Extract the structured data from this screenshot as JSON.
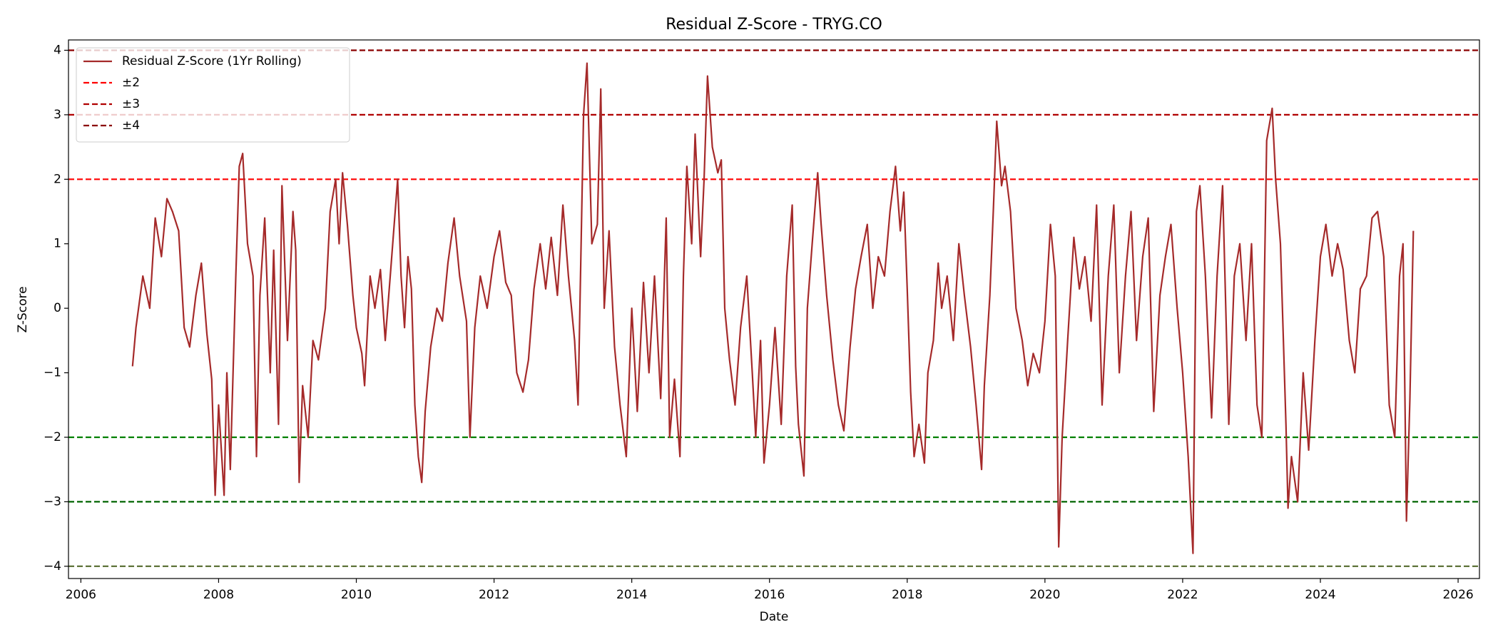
{
  "chart_data": {
    "type": "line",
    "title": "Residual Z-Score - TRYG.CO",
    "xlabel": "Date",
    "ylabel": "Z-Score",
    "legend": "upper left",
    "xlim": [
      2005.82,
      2026.31
    ],
    "ylim": [
      -4.19,
      4.16
    ],
    "xticks": [
      2006,
      2008,
      2010,
      2012,
      2014,
      2016,
      2018,
      2020,
      2022,
      2024,
      2026
    ],
    "yticks": [
      {
        "value": -4,
        "label": "−4"
      },
      {
        "value": -3,
        "label": "−3"
      },
      {
        "value": -2,
        "label": "−2"
      },
      {
        "value": -1,
        "label": "−1"
      },
      0,
      1,
      2,
      3,
      4
    ],
    "reference_lines": [
      {
        "name": "±2",
        "upper": 2,
        "lower": -2,
        "color": "#ff0000",
        "lower_color": "#008000"
      },
      {
        "name": "±3",
        "upper": 3,
        "lower": -3,
        "color": "#b00000",
        "lower_color": "#006400"
      },
      {
        "name": "±4",
        "upper": 4,
        "lower": -4,
        "color": "#8b0000",
        "lower_color": "#556b2f"
      }
    ],
    "x": [
      2006.75,
      2006.8,
      2006.9,
      2007.0,
      2007.08,
      2007.17,
      2007.25,
      2007.33,
      2007.42,
      2007.5,
      2007.58,
      2007.67,
      2007.75,
      2007.83,
      2007.9,
      2007.95,
      2008.0,
      2008.08,
      2008.12,
      2008.17,
      2008.25,
      2008.3,
      2008.35,
      2008.42,
      2008.5,
      2008.55,
      2008.6,
      2008.67,
      2008.75,
      2008.8,
      2008.87,
      2008.92,
      2009.0,
      2009.08,
      2009.12,
      2009.17,
      2009.22,
      2009.3,
      2009.37,
      2009.45,
      2009.55,
      2009.62,
      2009.7,
      2009.75,
      2009.8,
      2009.87,
      2009.95,
      2010.0,
      2010.08,
      2010.12,
      2010.2,
      2010.27,
      2010.35,
      2010.42,
      2010.5,
      2010.6,
      2010.65,
      2010.7,
      2010.75,
      2010.8,
      2010.85,
      2010.9,
      2010.95,
      2011.0,
      2011.08,
      2011.17,
      2011.25,
      2011.33,
      2011.42,
      2011.5,
      2011.6,
      2011.65,
      2011.72,
      2011.8,
      2011.9,
      2012.0,
      2012.08,
      2012.17,
      2012.25,
      2012.33,
      2012.42,
      2012.5,
      2012.58,
      2012.67,
      2012.75,
      2012.83,
      2012.92,
      2013.0,
      2013.08,
      2013.17,
      2013.22,
      2013.3,
      2013.35,
      2013.42,
      2013.5,
      2013.55,
      2013.6,
      2013.67,
      2013.75,
      2013.83,
      2013.92,
      2014.0,
      2014.08,
      2014.17,
      2014.25,
      2014.33,
      2014.42,
      2014.5,
      2014.55,
      2014.62,
      2014.7,
      2014.75,
      2014.8,
      2014.87,
      2014.92,
      2015.0,
      2015.05,
      2015.1,
      2015.17,
      2015.25,
      2015.3,
      2015.35,
      2015.42,
      2015.5,
      2015.58,
      2015.67,
      2015.75,
      2015.8,
      2015.87,
      2015.92,
      2016.0,
      2016.08,
      2016.17,
      2016.25,
      2016.33,
      2016.38,
      2016.42,
      2016.5,
      2016.55,
      2016.62,
      2016.7,
      2016.75,
      2016.83,
      2016.92,
      2017.0,
      2017.08,
      2017.17,
      2017.25,
      2017.33,
      2017.42,
      2017.5,
      2017.58,
      2017.67,
      2017.75,
      2017.83,
      2017.9,
      2017.95,
      2018.0,
      2018.05,
      2018.1,
      2018.17,
      2018.25,
      2018.3,
      2018.38,
      2018.45,
      2018.5,
      2018.58,
      2018.67,
      2018.75,
      2018.83,
      2018.92,
      2019.0,
      2019.08,
      2019.12,
      2019.2,
      2019.25,
      2019.3,
      2019.37,
      2019.42,
      2019.5,
      2019.58,
      2019.67,
      2019.75,
      2019.83,
      2019.92,
      2020.0,
      2020.08,
      2020.15,
      2020.2,
      2020.25,
      2020.33,
      2020.42,
      2020.5,
      2020.58,
      2020.67,
      2020.75,
      2020.83,
      2020.92,
      2021.0,
      2021.08,
      2021.17,
      2021.25,
      2021.33,
      2021.42,
      2021.5,
      2021.58,
      2021.67,
      2021.75,
      2021.83,
      2021.92,
      2022.0,
      2022.08,
      2022.15,
      2022.2,
      2022.25,
      2022.33,
      2022.42,
      2022.5,
      2022.58,
      2022.67,
      2022.75,
      2022.83,
      2022.92,
      2023.0,
      2023.08,
      2023.15,
      2023.22,
      2023.3,
      2023.35,
      2023.42,
      2023.5,
      2023.53,
      2023.58,
      2023.67,
      2023.75,
      2023.83,
      2023.92,
      2024.0,
      2024.08,
      2024.17,
      2024.25,
      2024.33,
      2024.42,
      2024.5,
      2024.58,
      2024.67,
      2024.75,
      2024.83,
      2024.92,
      2025.0,
      2025.08,
      2025.15,
      2025.2,
      2025.25,
      2025.3,
      2025.35
    ],
    "series": [
      {
        "name": "Residual Z-Score (1Yr Rolling)",
        "color": "#a52a2a",
        "values": [
          -0.9,
          -0.3,
          0.5,
          0.0,
          1.4,
          0.8,
          1.7,
          1.5,
          1.2,
          -0.3,
          -0.6,
          0.2,
          0.7,
          -0.4,
          -1.1,
          -2.9,
          -1.5,
          -2.9,
          -1.0,
          -2.5,
          0.5,
          2.2,
          2.4,
          1.0,
          0.5,
          -2.3,
          0.2,
          1.4,
          -1.0,
          0.9,
          -1.8,
          1.9,
          -0.5,
          1.5,
          0.9,
          -2.7,
          -1.2,
          -2.0,
          -0.5,
          -0.8,
          0.0,
          1.5,
          2.0,
          1.0,
          2.1,
          1.3,
          0.2,
          -0.3,
          -0.7,
          -1.2,
          0.5,
          0.0,
          0.6,
          -0.5,
          0.6,
          2.0,
          0.5,
          -0.3,
          0.8,
          0.3,
          -1.5,
          -2.3,
          -2.7,
          -1.6,
          -0.6,
          0.0,
          -0.2,
          0.7,
          1.4,
          0.5,
          -0.2,
          -2.0,
          -0.3,
          0.5,
          0.0,
          0.8,
          1.2,
          0.4,
          0.2,
          -1.0,
          -1.3,
          -0.8,
          0.3,
          1.0,
          0.3,
          1.1,
          0.2,
          1.6,
          0.5,
          -0.5,
          -1.5,
          3.0,
          3.8,
          1.0,
          1.3,
          3.4,
          0.0,
          1.2,
          -0.6,
          -1.5,
          -2.3,
          0.0,
          -1.6,
          0.4,
          -1.0,
          0.5,
          -1.4,
          1.4,
          -2.0,
          -1.1,
          -2.3,
          0.5,
          2.2,
          1.0,
          2.7,
          0.8,
          2.0,
          3.6,
          2.5,
          2.1,
          2.3,
          0.0,
          -0.8,
          -1.5,
          -0.3,
          0.5,
          -1.0,
          -2.0,
          -0.5,
          -2.4,
          -1.5,
          -0.3,
          -1.8,
          0.5,
          1.6,
          -0.9,
          -1.8,
          -2.6,
          0.0,
          1.0,
          2.1,
          1.3,
          0.2,
          -0.8,
          -1.5,
          -1.9,
          -0.6,
          0.3,
          0.8,
          1.3,
          0.0,
          0.8,
          0.5,
          1.5,
          2.2,
          1.2,
          1.8,
          0.3,
          -1.3,
          -2.3,
          -1.8,
          -2.4,
          -1.0,
          -0.5,
          0.7,
          0.0,
          0.5,
          -0.5,
          1.0,
          0.2,
          -0.6,
          -1.5,
          -2.5,
          -1.2,
          0.2,
          1.5,
          2.9,
          1.9,
          2.2,
          1.5,
          0.0,
          -0.5,
          -1.2,
          -0.7,
          -1.0,
          -0.2,
          1.3,
          0.5,
          -3.7,
          -2.0,
          -0.5,
          1.1,
          0.3,
          0.8,
          -0.2,
          1.6,
          -1.5,
          0.5,
          1.6,
          -1.0,
          0.5,
          1.5,
          -0.5,
          0.8,
          1.4,
          -1.6,
          0.2,
          0.8,
          1.3,
          0.0,
          -1.0,
          -2.3,
          -3.8,
          1.5,
          1.9,
          0.5,
          -1.7,
          0.5,
          1.9,
          -1.8,
          0.5,
          1.0,
          -0.5,
          1.0,
          -1.5,
          -2.0,
          2.6,
          3.1,
          2.0,
          1.0,
          -1.8,
          -3.1,
          -2.3,
          -3.0,
          -1.0,
          -2.2,
          -0.5,
          0.8,
          1.3,
          0.5,
          1.0,
          0.6,
          -0.5,
          -1.0,
          0.3,
          0.5,
          1.4,
          1.5,
          0.8,
          -1.5,
          -2.0,
          0.5,
          1.0,
          -3.3,
          -1.4,
          1.2
        ]
      }
    ]
  }
}
